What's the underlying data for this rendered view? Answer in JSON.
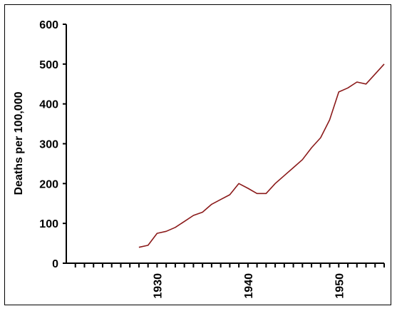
{
  "chart_data": {
    "type": "line",
    "title": "",
    "xlabel": "",
    "ylabel": "Deaths per 100,000",
    "xlim": [
      1920,
      1955
    ],
    "ylim": [
      0,
      600
    ],
    "grid": false,
    "y_ticks": [
      0,
      100,
      200,
      300,
      400,
      500,
      600
    ],
    "x_tick_labels": [
      {
        "value": 1930,
        "label": "1930"
      },
      {
        "value": 1940,
        "label": "1940"
      },
      {
        "value": 1950,
        "label": "1950"
      }
    ],
    "colors": {
      "line": "#8b1a1a",
      "axis": "#000000"
    },
    "series": [
      {
        "x": [
          1928,
          1929,
          1930,
          1931,
          1932,
          1933,
          1934,
          1935,
          1936,
          1937,
          1938,
          1939,
          1940,
          1941,
          1942,
          1943,
          1944,
          1945,
          1946,
          1947,
          1948,
          1949,
          1950,
          1951,
          1952,
          1953,
          1954,
          1955
        ],
        "values": [
          40,
          45,
          75,
          80,
          90,
          105,
          120,
          128,
          148,
          160,
          172,
          200,
          188,
          175,
          175,
          200,
          220,
          240,
          260,
          290,
          315,
          360,
          430,
          440,
          455,
          450,
          475,
          500
        ]
      }
    ]
  }
}
